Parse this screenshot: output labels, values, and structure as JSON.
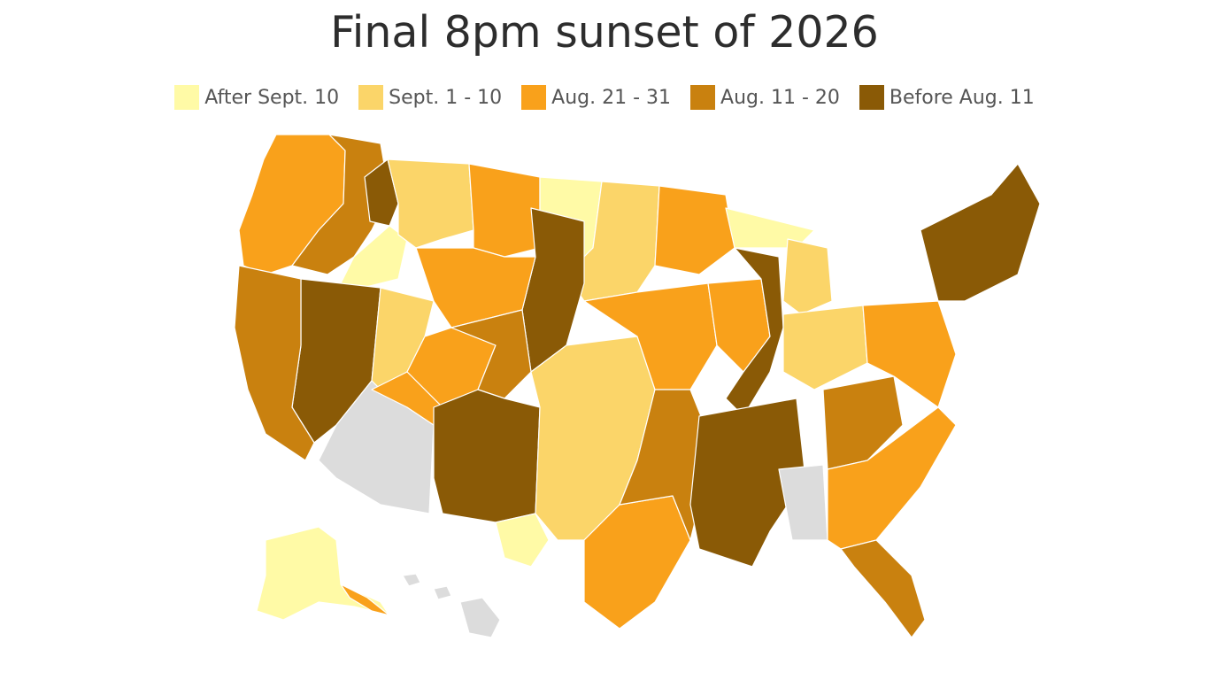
{
  "title": "Final 8pm sunset of 2026",
  "legend": [
    {
      "label": "After Sept. 10",
      "color": "#fffaa6"
    },
    {
      "label": "Sept. 1 - 10",
      "color": "#fbd569"
    },
    {
      "label": "Aug. 21 - 31",
      "color": "#f9a11b"
    },
    {
      "label": "Aug. 11 - 20",
      "color": "#c9810f"
    },
    {
      "label": "Before Aug. 11",
      "color": "#8a5a06"
    }
  ],
  "no_data_color": "#dcdcdc",
  "state_border_color": "#ffffff"
}
